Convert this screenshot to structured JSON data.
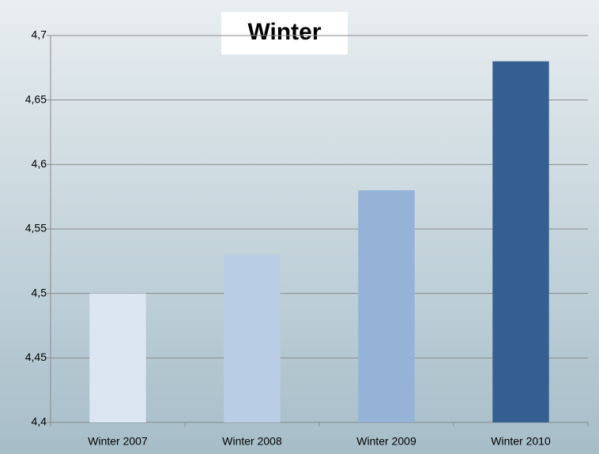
{
  "chart_data": {
    "type": "bar",
    "title": "Winter",
    "categories": [
      "Winter 2007",
      "Winter 2008",
      "Winter 2009",
      "Winter 2010"
    ],
    "values": [
      4.5,
      4.53,
      4.58,
      4.68
    ],
    "colors": [
      "#dce6f2",
      "#b9cde5",
      "#95b3d7",
      "#355e91"
    ],
    "ylim": [
      4.4,
      4.7
    ],
    "yticks": [
      {
        "value": 4.4,
        "label": "4,4"
      },
      {
        "value": 4.45,
        "label": "4,45"
      },
      {
        "value": 4.5,
        "label": "4,5"
      },
      {
        "value": 4.55,
        "label": "4,55"
      },
      {
        "value": 4.6,
        "label": "4,6"
      },
      {
        "value": 4.65,
        "label": "4,65"
      },
      {
        "value": 4.7,
        "label": "4,7"
      }
    ],
    "grid": true
  }
}
